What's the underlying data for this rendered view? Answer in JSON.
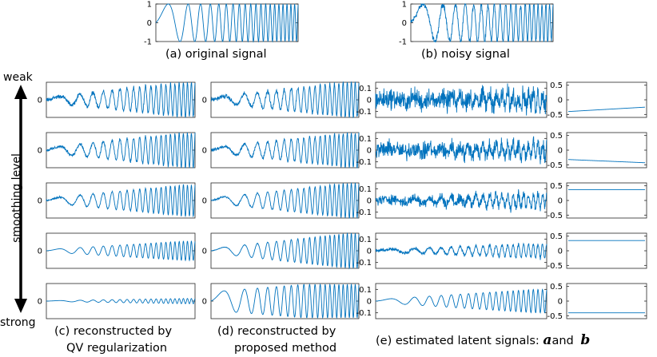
{
  "captions": {
    "a": "(a) original signal",
    "b": "(b) noisy signal",
    "c_line1": "(c) reconstructed by",
    "c_line2": "QV regularization",
    "d_line1": "(d) reconstructed by",
    "d_line2": "proposed method",
    "e_text": "(e) estimated latent signals:",
    "e_sym_a": "a",
    "e_and": "and",
    "e_sym_b": "b"
  },
  "side_labels": {
    "axis": "smoothing level",
    "top": "weak",
    "bottom": "strong"
  },
  "colors": {
    "line": "#0072bd",
    "axis": "#262626",
    "arrow": "#000000"
  },
  "chart_data": [
    {
      "id": "original",
      "type": "line",
      "signal": "chirp",
      "amplitude": 1.0,
      "noise": 0.0,
      "ylim": [
        -1,
        1
      ],
      "yticks": [
        -1,
        0,
        1
      ]
    },
    {
      "id": "noisy",
      "type": "line",
      "signal": "chirp",
      "amplitude": 1.0,
      "noise": 0.12,
      "ylim": [
        -1,
        1
      ],
      "yticks": [
        -1,
        0,
        1
      ]
    },
    {
      "id": "qv",
      "type": "line",
      "smoothing_levels": 5,
      "signal": "chirp",
      "amplitude": [
        1.0,
        1.0,
        0.9,
        0.55,
        0.15
      ],
      "noise": [
        0.08,
        0.06,
        0.03,
        0.0,
        0.0
      ],
      "ylim": [
        -1,
        1
      ],
      "yticks": [
        0
      ]
    },
    {
      "id": "proposed",
      "type": "line",
      "smoothing_levels": 5,
      "signal": "chirp",
      "amplitude": [
        1.0,
        1.0,
        1.0,
        1.0,
        1.0
      ],
      "noise": [
        0.08,
        0.06,
        0.03,
        0.01,
        0.0
      ],
      "ylim": [
        -1,
        1
      ],
      "yticks": [
        0
      ]
    },
    {
      "id": "latent_a",
      "type": "line",
      "smoothing_levels": 5,
      "ylim": [
        -0.15,
        0.15
      ],
      "yticks": [
        -0.1,
        0,
        0.1
      ],
      "noise": [
        0.06,
        0.05,
        0.03,
        0.01,
        0.0
      ],
      "chirp_amplitude": [
        0.06,
        0.06,
        0.06,
        0.06,
        0.1
      ]
    },
    {
      "id": "latent_b",
      "type": "line",
      "smoothing_levels": 5,
      "ylim": [
        -0.6,
        0.6
      ],
      "yticks": [
        -0.5,
        0,
        0.5
      ],
      "start": [
        -0.4,
        -0.32,
        0.37,
        0.35,
        -0.4
      ],
      "end": [
        -0.25,
        -0.43,
        0.37,
        0.35,
        -0.4
      ]
    }
  ]
}
